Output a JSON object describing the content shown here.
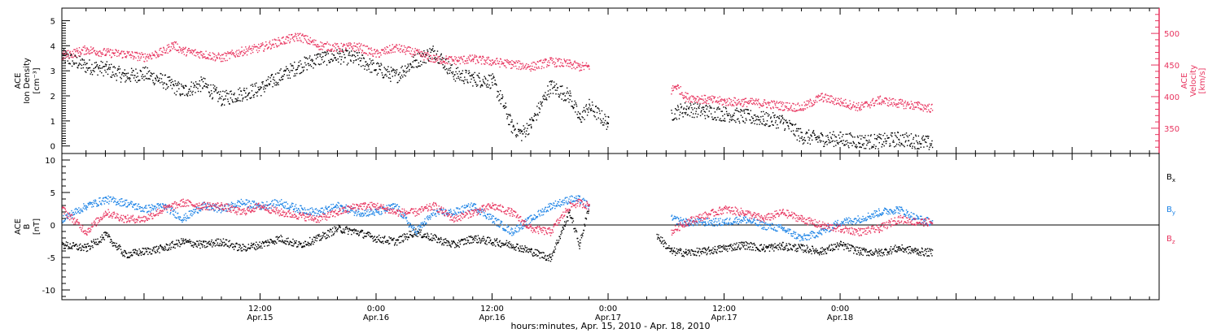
{
  "colors": {
    "black": "#000000",
    "blue": "#1a82e6",
    "pink": "#e8345f"
  },
  "xaxis": {
    "label": "hours:minutes, Apr. 15, 2010 - Apr. 18, 2010",
    "range_hours": [
      -8.5,
      105
    ],
    "ticks": [
      {
        "time": "12:00",
        "date": "Apr.15",
        "hour": 12
      },
      {
        "time": "0:00",
        "date": "Apr.16",
        "hour": 24
      },
      {
        "time": "12:00",
        "date": "Apr.16",
        "hour": 36
      },
      {
        "time": "0:00",
        "date": "Apr.17",
        "hour": 48
      },
      {
        "time": "12:00",
        "date": "Apr.17",
        "hour": 60
      },
      {
        "time": "0:00",
        "date": "Apr.18",
        "hour": 72
      }
    ]
  },
  "chart_data": [
    {
      "type": "scatter",
      "panel": "top",
      "ylabel_left": [
        "ACE",
        "Ion Density",
        "[cm⁻³]"
      ],
      "ylabel_right": [
        "ACE",
        "Velocity",
        "[km/s]"
      ],
      "ylim_left": [
        -0.3,
        5.5
      ],
      "yticks_left": [
        0,
        1,
        2,
        3,
        4,
        5
      ],
      "ylim_right": [
        310,
        540
      ],
      "yticks_right": [
        350,
        400,
        450,
        500
      ],
      "grid": false,
      "series": [
        {
          "name": "Ion Density",
          "axis": "left",
          "color": "black",
          "x": [
            -8.5,
            -6,
            -4,
            -2,
            0,
            2,
            4,
            6,
            8,
            10,
            12,
            14,
            16,
            18,
            20,
            22,
            24,
            26,
            28,
            30,
            32,
            34,
            36,
            37,
            38,
            39,
            40,
            42,
            44,
            45,
            46,
            48,
            54.5,
            56,
            58,
            60,
            62,
            64,
            66,
            68,
            70,
            72,
            74,
            76,
            78,
            80,
            81.5
          ],
          "y": [
            3.6,
            3.2,
            3.1,
            2.8,
            2.9,
            2.6,
            2.2,
            2.5,
            1.9,
            2.1,
            2.3,
            2.8,
            3.2,
            3.5,
            3.6,
            3.5,
            3.1,
            2.8,
            3.4,
            3.8,
            2.9,
            2.7,
            2.6,
            1.8,
            0.8,
            0.5,
            0.9,
            2.4,
            2.0,
            1.1,
            1.6,
            0.9,
            1.3,
            1.5,
            1.4,
            1.3,
            1.2,
            1.1,
            1.0,
            0.4,
            0.3,
            0.3,
            0.2,
            0.2,
            0.3,
            0.2,
            0.1
          ]
        },
        {
          "name": "Velocity",
          "axis": "right",
          "color": "pink",
          "x": [
            -8.5,
            -6,
            -4,
            -2,
            0,
            2,
            3,
            4,
            6,
            8,
            10,
            12,
            14,
            16,
            18,
            20,
            22,
            24,
            26,
            28,
            30,
            32,
            34,
            36,
            38,
            40,
            42,
            44,
            45,
            46,
            54.5,
            55,
            56,
            58,
            60,
            62,
            64,
            66,
            68,
            70,
            72,
            74,
            76,
            78,
            80,
            81.5
          ],
          "y": [
            465,
            475,
            470,
            468,
            463,
            472,
            483,
            473,
            468,
            462,
            472,
            478,
            488,
            496,
            482,
            478,
            480,
            468,
            478,
            470,
            460,
            458,
            460,
            456,
            452,
            448,
            456,
            452,
            448,
            448,
            410,
            418,
            400,
            396,
            393,
            392,
            390,
            386,
            383,
            400,
            392,
            384,
            395,
            390,
            386,
            382
          ]
        }
      ]
    },
    {
      "type": "scatter",
      "panel": "bottom",
      "ylabel_left": [
        "ACE",
        "B",
        "[nT]"
      ],
      "ylim": [
        -11.5,
        11
      ],
      "yticks": [
        -10,
        -5,
        0,
        5,
        10
      ],
      "zero_line": true,
      "grid": false,
      "legend_placement": "right",
      "series": [
        {
          "name": "Bx",
          "legend": "B",
          "sub": "x",
          "color": "black",
          "x": [
            -8.5,
            -6,
            -4,
            -2,
            0,
            2,
            4,
            6,
            8,
            10,
            12,
            14,
            16,
            18,
            20,
            22,
            24,
            26,
            28,
            30,
            32,
            34,
            36,
            38,
            40,
            42,
            44,
            45,
            46,
            53,
            54.5,
            56,
            58,
            60,
            62,
            64,
            66,
            68,
            70,
            72,
            74,
            76,
            78,
            80,
            81.5
          ],
          "y": [
            -3,
            -3.5,
            -1.5,
            -4.5,
            -4,
            -3.5,
            -2.5,
            -3,
            -2.5,
            -3.5,
            -3,
            -2,
            -3,
            -2,
            -0.5,
            -1,
            -2,
            -2.5,
            -1,
            -2,
            -3,
            -2,
            -2.5,
            -3,
            -4,
            -5,
            2,
            -3,
            3,
            -1.5,
            -4,
            -4.2,
            -4,
            -3.5,
            -3,
            -3.5,
            -3.2,
            -3.5,
            -4,
            -3,
            -4,
            -4.2,
            -3.5,
            -4,
            -4.2
          ]
        },
        {
          "name": "By",
          "legend": "B",
          "sub": "y",
          "color": "blue",
          "x": [
            -8.5,
            -6,
            -4,
            -2,
            0,
            2,
            4,
            6,
            8,
            10,
            12,
            14,
            16,
            18,
            20,
            22,
            24,
            26,
            28,
            30,
            32,
            34,
            36,
            38,
            40,
            42,
            44,
            45,
            46,
            54.5,
            56,
            58,
            60,
            62,
            64,
            66,
            68,
            70,
            72,
            74,
            76,
            78,
            80,
            81.5
          ],
          "y": [
            1,
            3,
            4,
            3.5,
            2.5,
            3,
            1,
            3,
            2.5,
            3.5,
            3,
            3.5,
            2.5,
            2,
            3,
            2,
            2,
            3,
            -1,
            2,
            2,
            3,
            1,
            -1,
            1,
            3,
            4,
            4,
            3,
            1,
            0.5,
            0.5,
            0.5,
            1,
            0,
            -0.5,
            -2,
            -1,
            0.5,
            1,
            2,
            2.5,
            1,
            0.5
          ]
        },
        {
          "name": "Bz",
          "legend": "B",
          "sub": "z",
          "color": "pink",
          "x": [
            -8.5,
            -6,
            -4,
            -2,
            0,
            2,
            4,
            6,
            8,
            10,
            12,
            14,
            16,
            18,
            20,
            22,
            24,
            26,
            28,
            30,
            32,
            34,
            36,
            38,
            40,
            42,
            44,
            45,
            46,
            54.5,
            56,
            58,
            60,
            62,
            64,
            66,
            68,
            70,
            72,
            74,
            76,
            78,
            80,
            81.5
          ],
          "y": [
            2.5,
            -1,
            2,
            1,
            1,
            2.5,
            3.5,
            3,
            3,
            2,
            3,
            2,
            1.5,
            1,
            2,
            3,
            3,
            2,
            2,
            3,
            1,
            2,
            3,
            2,
            -0.5,
            -1,
            3,
            3.5,
            3,
            -1,
            0.5,
            1.5,
            2.5,
            2,
            1,
            2,
            1,
            0,
            -0.5,
            -1,
            -0.5,
            1,
            0.5,
            0.5
          ]
        }
      ]
    }
  ]
}
